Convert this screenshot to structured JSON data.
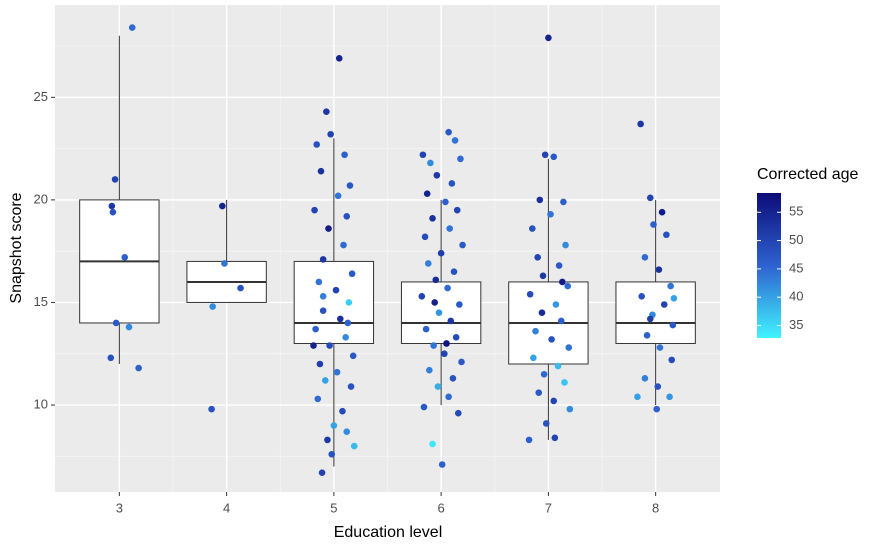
{
  "chart_data": {
    "type": "box",
    "x_label": "Education level",
    "y_label": "Snapshot score",
    "categories": [
      3,
      4,
      5,
      6,
      7,
      8
    ],
    "xlim": [
      2.4,
      8.6
    ],
    "ylim": [
      5.76,
      29.5
    ],
    "yticks": [
      10,
      15,
      20,
      25
    ],
    "grid": true,
    "boxes": [
      {
        "low": 12,
        "q1": 14,
        "median": 17,
        "q3": 20,
        "high": 28
      },
      {
        "low": 15,
        "q1": 15,
        "median": 16,
        "q3": 17,
        "high": 20
      },
      {
        "low": 7,
        "q1": 13,
        "median": 14,
        "q3": 17,
        "high": 23
      },
      {
        "low": 10,
        "q1": 13,
        "median": 14,
        "q3": 16,
        "high": 20
      },
      {
        "low": 8.3,
        "q1": 12,
        "median": 14,
        "q3": 16,
        "high": 22
      },
      {
        "low": 10,
        "q1": 13,
        "median": 14,
        "q3": 16,
        "high": 20
      }
    ],
    "box_fill": "#ffffff",
    "box_stroke": "#333333",
    "legend_title": "Corrected age",
    "colorlim": [
      32.8,
      58.4
    ],
    "colorticks": [
      35,
      40,
      45,
      50,
      55
    ],
    "colors": [
      "#40f4ff",
      "#2e62d0",
      "#0c0c78"
    ],
    "points": [
      [
        3.12,
        28.4,
        45
      ],
      [
        2.96,
        21,
        50
      ],
      [
        2.93,
        19.7,
        52
      ],
      [
        2.94,
        19.4,
        48
      ],
      [
        3.05,
        17.2,
        46
      ],
      [
        2.97,
        14,
        47
      ],
      [
        3.09,
        13.8,
        42
      ],
      [
        2.92,
        12.3,
        48
      ],
      [
        3.18,
        11.8,
        46
      ],
      [
        3.96,
        19.7,
        55
      ],
      [
        3.98,
        16.9,
        44
      ],
      [
        4.13,
        15.7,
        48
      ],
      [
        3.87,
        14.8,
        42
      ],
      [
        3.86,
        9.8,
        48
      ],
      [
        5.05,
        26.9,
        55
      ],
      [
        4.93,
        24.3,
        52
      ],
      [
        4.97,
        23.2,
        50
      ],
      [
        4.84,
        22.7,
        48
      ],
      [
        5.1,
        22.2,
        46
      ],
      [
        4.88,
        21.4,
        53
      ],
      [
        5.15,
        20.7,
        47
      ],
      [
        5.04,
        20.2,
        44
      ],
      [
        4.82,
        19.5,
        50
      ],
      [
        5.12,
        19.2,
        48
      ],
      [
        4.95,
        18.6,
        56
      ],
      [
        5.09,
        17.8,
        45
      ],
      [
        4.9,
        17.1,
        52
      ],
      [
        5.17,
        16.4,
        47
      ],
      [
        4.86,
        16.0,
        44
      ],
      [
        5.02,
        15.6,
        50
      ],
      [
        5.14,
        15.0,
        36
      ],
      [
        4.9,
        14.6,
        48
      ],
      [
        5.06,
        14.2,
        53
      ],
      [
        4.83,
        13.7,
        46
      ],
      [
        5.11,
        13.3,
        42
      ],
      [
        4.96,
        12.9,
        49
      ],
      [
        5.18,
        12.4,
        47
      ],
      [
        4.87,
        12.0,
        51
      ],
      [
        5.03,
        11.6,
        44
      ],
      [
        4.92,
        11.2,
        40
      ],
      [
        5.16,
        10.9,
        48
      ],
      [
        4.85,
        10.3,
        45
      ],
      [
        5.08,
        9.7,
        49
      ],
      [
        5.0,
        9.0,
        40
      ],
      [
        5.12,
        8.7,
        42
      ],
      [
        4.94,
        8.3,
        52
      ],
      [
        5.19,
        8.0,
        38
      ],
      [
        4.98,
        7.6,
        48
      ],
      [
        4.89,
        6.7,
        50
      ],
      [
        4.81,
        12.9,
        55
      ],
      [
        5.13,
        14.0,
        46
      ],
      [
        4.9,
        15.3,
        43
      ],
      [
        6.07,
        23.3,
        47
      ],
      [
        6.13,
        22.9,
        44
      ],
      [
        5.83,
        22.2,
        50
      ],
      [
        6.18,
        22.0,
        45
      ],
      [
        5.9,
        21.8,
        42
      ],
      [
        5.96,
        21.2,
        52
      ],
      [
        6.1,
        20.8,
        48
      ],
      [
        5.87,
        20.3,
        55
      ],
      [
        6.04,
        19.9,
        46
      ],
      [
        6.15,
        19.5,
        50
      ],
      [
        5.92,
        19.1,
        53
      ],
      [
        6.08,
        18.6,
        44
      ],
      [
        5.85,
        18.2,
        49
      ],
      [
        6.2,
        17.8,
        47
      ],
      [
        6.0,
        17.4,
        51
      ],
      [
        5.88,
        16.9,
        43
      ],
      [
        6.12,
        16.5,
        48
      ],
      [
        5.95,
        16.1,
        54
      ],
      [
        6.06,
        15.7,
        45
      ],
      [
        5.82,
        15.3,
        50
      ],
      [
        6.17,
        14.9,
        47
      ],
      [
        5.98,
        14.5,
        41
      ],
      [
        6.09,
        14.1,
        52
      ],
      [
        5.86,
        13.7,
        46
      ],
      [
        6.14,
        13.3,
        49
      ],
      [
        5.93,
        12.9,
        44
      ],
      [
        6.03,
        12.5,
        50
      ],
      [
        6.19,
        12.1,
        47
      ],
      [
        5.89,
        11.7,
        43
      ],
      [
        6.11,
        11.3,
        48
      ],
      [
        5.97,
        10.9,
        39
      ],
      [
        6.07,
        10.4,
        45
      ],
      [
        5.84,
        9.9,
        47
      ],
      [
        6.16,
        9.6,
        49
      ],
      [
        5.92,
        8.1,
        34
      ],
      [
        6.01,
        7.1,
        46
      ],
      [
        6.05,
        13.0,
        57
      ],
      [
        5.94,
        15.0,
        55
      ],
      [
        7.0,
        27.9,
        55
      ],
      [
        6.97,
        22.2,
        50
      ],
      [
        7.05,
        22.1,
        47
      ],
      [
        6.92,
        20.0,
        53
      ],
      [
        7.14,
        19.9,
        46
      ],
      [
        7.02,
        19.3,
        44
      ],
      [
        6.85,
        18.6,
        48
      ],
      [
        7.16,
        17.8,
        42
      ],
      [
        6.9,
        17.2,
        50
      ],
      [
        7.1,
        16.8,
        47
      ],
      [
        6.95,
        16.3,
        52
      ],
      [
        7.18,
        15.8,
        45
      ],
      [
        6.83,
        15.4,
        49
      ],
      [
        7.07,
        14.9,
        41
      ],
      [
        6.94,
        14.5,
        54
      ],
      [
        7.12,
        14.1,
        46
      ],
      [
        6.88,
        13.6,
        43
      ],
      [
        7.03,
        13.2,
        48
      ],
      [
        7.19,
        12.8,
        44
      ],
      [
        6.86,
        12.3,
        40
      ],
      [
        7.09,
        11.9,
        38
      ],
      [
        6.96,
        11.5,
        45
      ],
      [
        7.15,
        11.1,
        37
      ],
      [
        6.91,
        10.6,
        47
      ],
      [
        7.05,
        10.2,
        50
      ],
      [
        7.2,
        9.8,
        42
      ],
      [
        6.98,
        9.1,
        48
      ],
      [
        6.82,
        8.3,
        46
      ],
      [
        7.06,
        8.4,
        50
      ],
      [
        7.13,
        16.0,
        56
      ],
      [
        7.86,
        23.7,
        52
      ],
      [
        7.95,
        20.1,
        50
      ],
      [
        8.06,
        19.4,
        56
      ],
      [
        7.98,
        18.8,
        46
      ],
      [
        8.1,
        18.3,
        48
      ],
      [
        7.9,
        17.2,
        45
      ],
      [
        8.03,
        16.6,
        53
      ],
      [
        8.14,
        15.8,
        44
      ],
      [
        7.87,
        15.3,
        48
      ],
      [
        8.08,
        14.9,
        50
      ],
      [
        7.97,
        14.4,
        42
      ],
      [
        8.16,
        13.9,
        47
      ],
      [
        7.92,
        13.4,
        46
      ],
      [
        8.04,
        12.8,
        44
      ],
      [
        8.15,
        12.2,
        49
      ],
      [
        7.9,
        11.3,
        43
      ],
      [
        8.02,
        10.9,
        48
      ],
      [
        8.13,
        10.4,
        41
      ],
      [
        7.83,
        10.4,
        40
      ],
      [
        8.01,
        9.8,
        46
      ],
      [
        8.17,
        15.2,
        40
      ],
      [
        7.95,
        14.2,
        51
      ]
    ]
  }
}
